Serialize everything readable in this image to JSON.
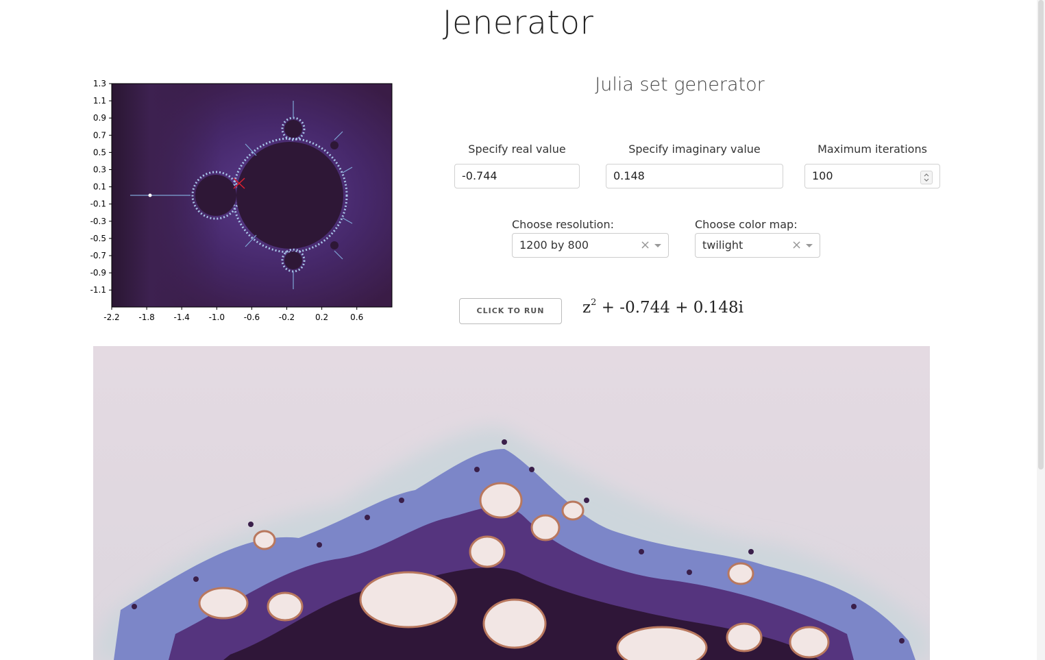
{
  "page": {
    "title": "Jenerator"
  },
  "plot": {
    "y_ticks": [
      "1.3",
      "1.1",
      "0.9",
      "0.7",
      "0.5",
      "0.3",
      "0.1",
      "-0.1",
      "-0.3",
      "-0.5",
      "-0.7",
      "-0.9",
      "-1.1"
    ],
    "x_ticks": [
      "-2.2",
      "-1.8",
      "-1.4",
      "-1.0",
      "-0.6",
      "-0.2",
      "0.2",
      "0.6"
    ],
    "marker": "X",
    "colors": {
      "background": "#3d1d4a",
      "set_fill": "#2e1736",
      "halo": "#5b3c8e",
      "edge": "#a9c6e8",
      "marker": "#e0202f"
    }
  },
  "form": {
    "subtitle": "Julia set generator",
    "real_label": "Specify real value",
    "real_value": "-0.744",
    "imag_label": "Specify imaginary value",
    "imag_value": "0.148",
    "iter_label": "Maximum iterations",
    "iter_value": "100",
    "resolution_label": "Choose resolution:",
    "resolution_value": "1200 by 800",
    "colormap_label": "Choose color map:",
    "colormap_value": "twilight",
    "clear_glyph": "×",
    "run_label": "CLICK TO RUN"
  },
  "formula": {
    "base": "z",
    "exponent": "2",
    "rest": " + -0.744 + 0.148i"
  },
  "julia": {
    "colors": {
      "background": "#e2d8e0",
      "haze": "#cfd6dc",
      "blue": "#7c86c8",
      "purple": "#55347e",
      "dark": "#2f1638",
      "cream": "#f2e6e4",
      "copper": "#b9785e"
    }
  }
}
